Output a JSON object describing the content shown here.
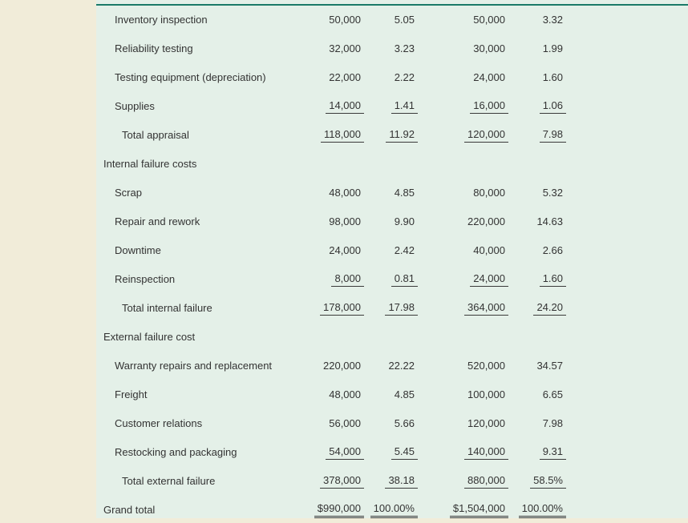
{
  "colors": {
    "page_bg": "#f1ecd9",
    "panel_bg": "#e4f0e8",
    "top_rule": "#1b7a68",
    "text": "#333333",
    "line": "#3a3a3a"
  },
  "table": {
    "rows": [
      {
        "label": "Inventory inspection",
        "indent": 1,
        "section": false,
        "underline": "none",
        "values": [
          "50,000",
          "5.05",
          "50,000",
          "3.32"
        ]
      },
      {
        "label": "Reliability testing",
        "indent": 1,
        "section": false,
        "underline": "none",
        "values": [
          "32,000",
          "3.23",
          "30,000",
          "1.99"
        ]
      },
      {
        "label": "Testing equipment (depreciation)",
        "indent": 1,
        "section": false,
        "underline": "none",
        "values": [
          "22,000",
          "2.22",
          "24,000",
          "1.60"
        ]
      },
      {
        "label": "Supplies",
        "indent": 1,
        "section": false,
        "underline": "single",
        "values": [
          "14,000",
          "1.41",
          "16,000",
          "1.06"
        ]
      },
      {
        "label": "Total appraisal",
        "indent": 2,
        "section": false,
        "underline": "single",
        "values": [
          "118,000",
          "11.92",
          "120,000",
          "7.98"
        ]
      },
      {
        "label": "Internal failure costs",
        "indent": 0,
        "section": true,
        "underline": "none",
        "values": []
      },
      {
        "label": "Scrap",
        "indent": 1,
        "section": false,
        "underline": "none",
        "values": [
          "48,000",
          "4.85",
          "80,000",
          "5.32"
        ]
      },
      {
        "label": "Repair and rework",
        "indent": 1,
        "section": false,
        "underline": "none",
        "values": [
          "98,000",
          "9.90",
          "220,000",
          "14.63"
        ]
      },
      {
        "label": "Downtime",
        "indent": 1,
        "section": false,
        "underline": "none",
        "values": [
          "24,000",
          "2.42",
          "40,000",
          "2.66"
        ]
      },
      {
        "label": "Reinspection",
        "indent": 1,
        "section": false,
        "underline": "single",
        "values": [
          "8,000",
          "0.81",
          "24,000",
          "1.60"
        ]
      },
      {
        "label": "Total internal failure",
        "indent": 2,
        "section": false,
        "underline": "single",
        "values": [
          "178,000",
          "17.98",
          "364,000",
          "24.20"
        ]
      },
      {
        "label": "External failure cost",
        "indent": 0,
        "section": true,
        "underline": "none",
        "values": []
      },
      {
        "label": "Warranty repairs and replacement",
        "indent": 1,
        "section": false,
        "underline": "none",
        "values": [
          "220,000",
          "22.22",
          "520,000",
          "34.57"
        ]
      },
      {
        "label": "Freight",
        "indent": 1,
        "section": false,
        "underline": "none",
        "values": [
          "48,000",
          "4.85",
          "100,000",
          "6.65"
        ]
      },
      {
        "label": "Customer relations",
        "indent": 1,
        "section": false,
        "underline": "none",
        "values": [
          "56,000",
          "5.66",
          "120,000",
          "7.98"
        ]
      },
      {
        "label": "Restocking and packaging",
        "indent": 1,
        "section": false,
        "underline": "single",
        "values": [
          "54,000",
          "5.45",
          "140,000",
          "9.31"
        ]
      },
      {
        "label": "Total external failure",
        "indent": 2,
        "section": false,
        "underline": "single",
        "values": [
          "378,000",
          "38.18",
          "880,000",
          "58.5%"
        ]
      },
      {
        "label": "Grand total",
        "indent": 0,
        "section": false,
        "underline": "double",
        "values": [
          "$990,000",
          "100.00%",
          "$1,504,000",
          "100.00%"
        ]
      }
    ]
  }
}
